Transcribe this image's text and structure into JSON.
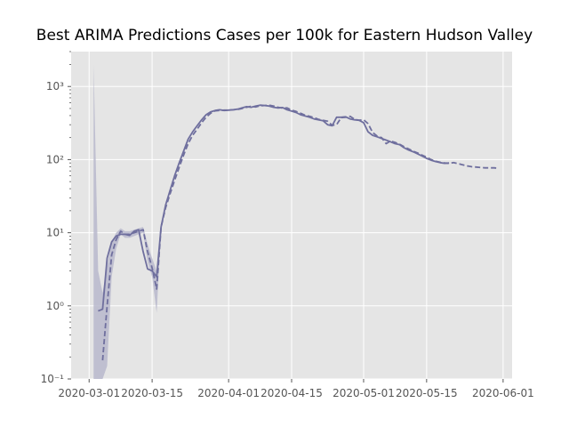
{
  "chart_data": {
    "type": "line",
    "title": "Best ARIMA Predictions Cases per 100k for Eastern Hudson Valley",
    "xlabel": "",
    "ylabel": "",
    "y_scale": "log",
    "ylim": [
      0.1,
      3000
    ],
    "xlim": [
      "2020-02-26",
      "2020-06-03"
    ],
    "grid": true,
    "background": "#e5e5e5",
    "x_ticks": [
      "2020-03-01",
      "2020-03-15",
      "2020-04-01",
      "2020-04-15",
      "2020-05-01",
      "2020-05-15",
      "2020-06-01"
    ],
    "y_ticks": [
      {
        "value": 0.1,
        "label": "10⁻¹"
      },
      {
        "value": 1,
        "label": "10⁰"
      },
      {
        "value": 10,
        "label": "10¹"
      },
      {
        "value": 100,
        "label": "10²"
      },
      {
        "value": 1000,
        "label": "10³"
      }
    ],
    "series": [
      {
        "style": "solid",
        "color": "#6f6f9e",
        "points": [
          [
            "2020-03-03",
            0.85
          ],
          [
            "2020-03-04",
            0.9
          ],
          [
            "2020-03-05",
            4.5
          ],
          [
            "2020-03-06",
            7.5
          ],
          [
            "2020-03-07",
            9
          ],
          [
            "2020-03-08",
            9.5
          ],
          [
            "2020-03-09",
            9.5
          ],
          [
            "2020-03-10",
            9.2
          ],
          [
            "2020-03-11",
            10.5
          ],
          [
            "2020-03-12",
            11
          ],
          [
            "2020-03-13",
            5.5
          ],
          [
            "2020-03-14",
            3.2
          ],
          [
            "2020-03-15",
            3.0
          ],
          [
            "2020-03-16",
            2.5
          ],
          [
            "2020-03-17",
            12
          ],
          [
            "2020-03-18",
            24
          ],
          [
            "2020-03-19",
            38
          ],
          [
            "2020-03-20",
            60
          ],
          [
            "2020-03-21",
            90
          ],
          [
            "2020-03-22",
            130
          ],
          [
            "2020-03-23",
            190
          ],
          [
            "2020-03-24",
            240
          ],
          [
            "2020-03-25",
            290
          ],
          [
            "2020-03-26",
            350
          ],
          [
            "2020-03-27",
            410
          ],
          [
            "2020-03-28",
            450
          ],
          [
            "2020-03-29",
            470
          ],
          [
            "2020-03-30",
            480
          ],
          [
            "2020-03-31",
            470
          ],
          [
            "2020-04-01",
            475
          ],
          [
            "2020-04-02",
            480
          ],
          [
            "2020-04-03",
            490
          ],
          [
            "2020-04-04",
            510
          ],
          [
            "2020-04-05",
            530
          ],
          [
            "2020-04-06",
            520
          ],
          [
            "2020-04-07",
            540
          ],
          [
            "2020-04-08",
            555
          ],
          [
            "2020-04-09",
            550
          ],
          [
            "2020-04-10",
            540
          ],
          [
            "2020-04-11",
            520
          ],
          [
            "2020-04-12",
            510
          ],
          [
            "2020-04-13",
            515
          ],
          [
            "2020-04-14",
            480
          ],
          [
            "2020-04-15",
            460
          ],
          [
            "2020-04-16",
            440
          ],
          [
            "2020-04-17",
            410
          ],
          [
            "2020-04-18",
            395
          ],
          [
            "2020-04-19",
            380
          ],
          [
            "2020-04-20",
            360
          ],
          [
            "2020-04-21",
            350
          ],
          [
            "2020-04-22",
            340
          ],
          [
            "2020-04-23",
            300
          ],
          [
            "2020-04-24",
            290
          ],
          [
            "2020-04-25",
            380
          ],
          [
            "2020-04-26",
            380
          ],
          [
            "2020-04-27",
            385
          ],
          [
            "2020-04-28",
            360
          ],
          [
            "2020-04-29",
            350
          ],
          [
            "2020-04-30",
            345
          ],
          [
            "2020-05-01",
            320
          ],
          [
            "2020-05-02",
            240
          ],
          [
            "2020-05-03",
            215
          ],
          [
            "2020-05-04",
            205
          ],
          [
            "2020-05-05",
            195
          ],
          [
            "2020-05-06",
            185
          ],
          [
            "2020-05-07",
            175
          ],
          [
            "2020-05-08",
            165
          ],
          [
            "2020-05-09",
            160
          ],
          [
            "2020-05-10",
            145
          ],
          [
            "2020-05-11",
            135
          ],
          [
            "2020-05-12",
            128
          ],
          [
            "2020-05-13",
            120
          ],
          [
            "2020-05-14",
            112
          ],
          [
            "2020-05-15",
            104
          ],
          [
            "2020-05-16",
            98
          ],
          [
            "2020-05-17",
            94
          ],
          [
            "2020-05-18",
            91
          ],
          [
            "2020-05-19",
            89
          ],
          [
            "2020-05-20",
            90
          ]
        ]
      },
      {
        "style": "dashed",
        "color": "#6f6f9e",
        "points": [
          [
            "2020-03-04",
            0.18
          ],
          [
            "2020-03-05",
            1.0
          ],
          [
            "2020-03-06",
            5.0
          ],
          [
            "2020-03-07",
            8
          ],
          [
            "2020-03-08",
            10.5
          ],
          [
            "2020-03-09",
            9.5
          ],
          [
            "2020-03-10",
            9.5
          ],
          [
            "2020-03-11",
            10
          ],
          [
            "2020-03-12",
            10.5
          ],
          [
            "2020-03-13",
            11
          ],
          [
            "2020-03-14",
            5.5
          ],
          [
            "2020-03-15",
            3.3
          ],
          [
            "2020-03-16",
            1.7
          ],
          [
            "2020-03-17",
            12
          ],
          [
            "2020-03-18",
            22
          ],
          [
            "2020-03-19",
            34
          ],
          [
            "2020-03-20",
            52
          ],
          [
            "2020-03-21",
            78
          ],
          [
            "2020-03-22",
            115
          ],
          [
            "2020-03-23",
            165
          ],
          [
            "2020-03-24",
            215
          ],
          [
            "2020-03-25",
            260
          ],
          [
            "2020-03-26",
            320
          ],
          [
            "2020-03-27",
            380
          ],
          [
            "2020-03-28",
            430
          ],
          [
            "2020-03-29",
            465
          ],
          [
            "2020-03-30",
            470
          ],
          [
            "2020-03-31",
            475
          ],
          [
            "2020-04-01",
            475
          ],
          [
            "2020-04-02",
            480
          ],
          [
            "2020-04-03",
            485
          ],
          [
            "2020-04-04",
            500
          ],
          [
            "2020-04-05",
            520
          ],
          [
            "2020-04-06",
            535
          ],
          [
            "2020-04-07",
            525
          ],
          [
            "2020-04-08",
            545
          ],
          [
            "2020-04-09",
            550
          ],
          [
            "2020-04-10",
            555
          ],
          [
            "2020-04-11",
            540
          ],
          [
            "2020-04-12",
            520
          ],
          [
            "2020-04-13",
            505
          ],
          [
            "2020-04-14",
            510
          ],
          [
            "2020-04-15",
            475
          ],
          [
            "2020-04-16",
            455
          ],
          [
            "2020-04-17",
            430
          ],
          [
            "2020-04-18",
            405
          ],
          [
            "2020-04-19",
            390
          ],
          [
            "2020-04-20",
            375
          ],
          [
            "2020-04-21",
            355
          ],
          [
            "2020-04-22",
            345
          ],
          [
            "2020-04-23",
            335
          ],
          [
            "2020-04-24",
            295
          ],
          [
            "2020-04-25",
            300
          ],
          [
            "2020-04-26",
            375
          ],
          [
            "2020-04-27",
            380
          ],
          [
            "2020-04-28",
            390
          ],
          [
            "2020-04-29",
            355
          ],
          [
            "2020-04-30",
            345
          ],
          [
            "2020-05-01",
            350
          ],
          [
            "2020-05-02",
            310
          ],
          [
            "2020-05-03",
            235
          ],
          [
            "2020-05-04",
            210
          ],
          [
            "2020-05-05",
            200
          ],
          [
            "2020-05-06",
            165
          ],
          [
            "2020-05-07",
            180
          ],
          [
            "2020-05-08",
            172
          ],
          [
            "2020-05-09",
            162
          ],
          [
            "2020-05-10",
            150
          ],
          [
            "2020-05-11",
            140
          ],
          [
            "2020-05-12",
            130
          ],
          [
            "2020-05-13",
            123
          ],
          [
            "2020-05-14",
            115
          ],
          [
            "2020-05-15",
            108
          ],
          [
            "2020-05-16",
            100
          ],
          [
            "2020-05-17",
            95
          ],
          [
            "2020-05-18",
            92
          ],
          [
            "2020-05-19",
            90
          ],
          [
            "2020-05-20",
            89
          ],
          [
            "2020-05-21",
            91
          ],
          [
            "2020-05-22",
            88
          ],
          [
            "2020-05-23",
            85
          ],
          [
            "2020-05-24",
            82
          ],
          [
            "2020-05-25",
            80
          ],
          [
            "2020-05-26",
            79
          ],
          [
            "2020-05-27",
            78
          ],
          [
            "2020-05-28",
            77
          ],
          [
            "2020-05-29",
            77
          ],
          [
            "2020-05-30",
            77
          ],
          [
            "2020-05-31",
            76
          ]
        ]
      }
    ],
    "band": {
      "color": "#b8b8cc",
      "upper": [
        [
          "2020-03-02",
          2000
        ],
        [
          "2020-03-03",
          3.0
        ],
        [
          "2020-03-04",
          1.5
        ],
        [
          "2020-03-05",
          3.5
        ],
        [
          "2020-03-06",
          7.5
        ],
        [
          "2020-03-07",
          10
        ],
        [
          "2020-03-08",
          11.5
        ],
        [
          "2020-03-09",
          10.5
        ],
        [
          "2020-03-10",
          10.5
        ],
        [
          "2020-03-11",
          11
        ],
        [
          "2020-03-12",
          11.5
        ],
        [
          "2020-03-13",
          12
        ],
        [
          "2020-03-14",
          7
        ],
        [
          "2020-03-15",
          4.5
        ],
        [
          "2020-03-16",
          3.0
        ],
        [
          "2020-03-17",
          13
        ]
      ],
      "lower": [
        [
          "2020-03-02",
          0.1
        ],
        [
          "2020-03-03",
          0.1
        ],
        [
          "2020-03-04",
          0.1
        ],
        [
          "2020-03-05",
          0.15
        ],
        [
          "2020-03-06",
          2.5
        ],
        [
          "2020-03-07",
          6
        ],
        [
          "2020-03-08",
          9.5
        ],
        [
          "2020-03-09",
          8.5
        ],
        [
          "2020-03-10",
          8.5
        ],
        [
          "2020-03-11",
          9
        ],
        [
          "2020-03-12",
          9.5
        ],
        [
          "2020-03-13",
          10
        ],
        [
          "2020-03-14",
          4
        ],
        [
          "2020-03-15",
          2.5
        ],
        [
          "2020-03-16",
          0.8
        ],
        [
          "2020-03-17",
          11
        ]
      ]
    }
  }
}
